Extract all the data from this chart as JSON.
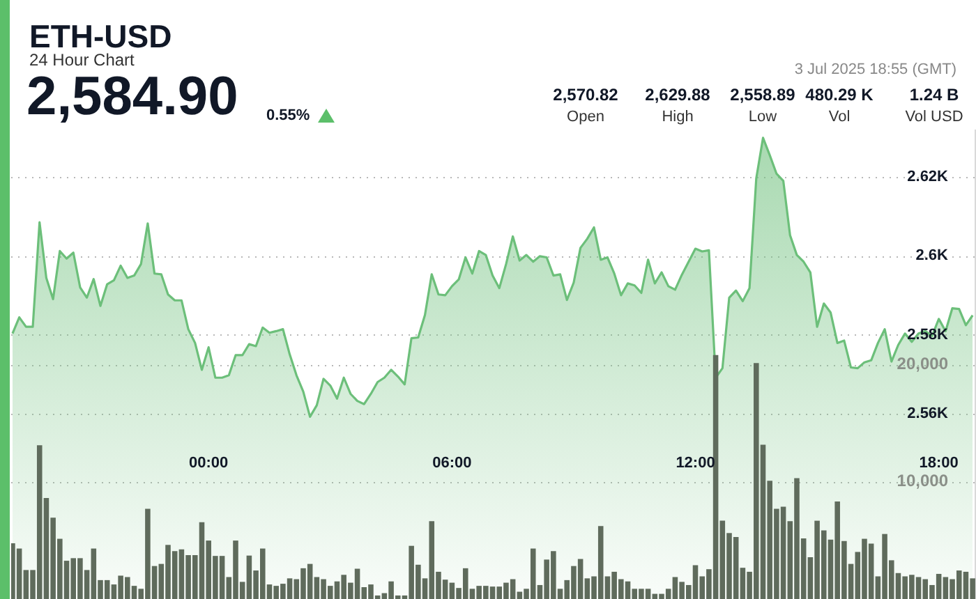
{
  "chart_data": {
    "type": "area",
    "title": "ETH-USD",
    "subtitle": "24 Hour Chart",
    "annotations": [
      "2,584.90",
      "0.55%",
      "3 Jul 2025 18:55 (GMT)",
      "2,570.82",
      "Open",
      "2,629.88",
      "High",
      "2,558.89",
      "Low",
      "480.29 K",
      "Vol",
      "1.24 B",
      "Vol USD"
    ],
    "x": [
      "2025-07-02T19:10",
      "2025-07-02T19:20",
      "2025-07-02T19:30",
      "2025-07-02T19:40",
      "2025-07-02T19:50",
      "2025-07-02T20:00",
      "2025-07-02T20:10",
      "2025-07-02T20:20",
      "2025-07-02T20:30",
      "2025-07-02T20:40",
      "2025-07-02T20:50",
      "2025-07-02T21:00",
      "2025-07-02T21:10",
      "2025-07-02T21:20",
      "2025-07-02T21:30",
      "2025-07-02T21:40",
      "2025-07-02T21:50",
      "2025-07-02T22:00",
      "2025-07-02T22:10",
      "2025-07-02T22:20",
      "2025-07-02T22:30",
      "2025-07-02T22:40",
      "2025-07-02T22:50",
      "2025-07-02T23:00",
      "2025-07-02T23:10",
      "2025-07-02T23:20",
      "2025-07-02T23:30",
      "2025-07-02T23:40",
      "2025-07-02T23:50",
      "2025-07-03T00:00",
      "2025-07-03T00:10",
      "2025-07-03T00:20",
      "2025-07-03T00:30",
      "2025-07-03T00:40",
      "2025-07-03T00:50",
      "2025-07-03T01:00",
      "2025-07-03T01:10",
      "2025-07-03T01:20",
      "2025-07-03T01:30",
      "2025-07-03T01:40",
      "2025-07-03T01:50",
      "2025-07-03T02:00",
      "2025-07-03T02:10",
      "2025-07-03T02:20",
      "2025-07-03T02:30",
      "2025-07-03T02:40",
      "2025-07-03T02:50",
      "2025-07-03T03:00",
      "2025-07-03T03:10",
      "2025-07-03T03:20",
      "2025-07-03T03:30",
      "2025-07-03T03:40",
      "2025-07-03T03:50",
      "2025-07-03T04:00",
      "2025-07-03T04:10",
      "2025-07-03T04:20",
      "2025-07-03T04:30",
      "2025-07-03T04:40",
      "2025-07-03T04:50",
      "2025-07-03T05:00",
      "2025-07-03T05:10",
      "2025-07-03T05:20",
      "2025-07-03T05:30",
      "2025-07-03T05:40",
      "2025-07-03T05:50",
      "2025-07-03T06:00",
      "2025-07-03T06:10",
      "2025-07-03T06:20",
      "2025-07-03T06:30",
      "2025-07-03T06:40",
      "2025-07-03T06:50",
      "2025-07-03T07:00",
      "2025-07-03T07:10",
      "2025-07-03T07:20",
      "2025-07-03T07:30",
      "2025-07-03T07:40",
      "2025-07-03T07:50",
      "2025-07-03T08:00",
      "2025-07-03T08:10",
      "2025-07-03T08:20",
      "2025-07-03T08:30",
      "2025-07-03T08:40",
      "2025-07-03T08:50",
      "2025-07-03T09:00",
      "2025-07-03T09:10",
      "2025-07-03T09:20",
      "2025-07-03T09:30",
      "2025-07-03T09:40",
      "2025-07-03T09:50",
      "2025-07-03T10:00",
      "2025-07-03T10:10",
      "2025-07-03T10:20",
      "2025-07-03T10:30",
      "2025-07-03T10:40",
      "2025-07-03T10:50",
      "2025-07-03T11:00",
      "2025-07-03T11:10",
      "2025-07-03T11:20",
      "2025-07-03T11:30",
      "2025-07-03T11:40",
      "2025-07-03T11:50",
      "2025-07-03T12:00",
      "2025-07-03T12:10",
      "2025-07-03T12:20",
      "2025-07-03T12:30",
      "2025-07-03T12:40",
      "2025-07-03T12:50",
      "2025-07-03T13:00",
      "2025-07-03T13:10",
      "2025-07-03T13:20",
      "2025-07-03T13:30",
      "2025-07-03T13:40",
      "2025-07-03T13:50",
      "2025-07-03T14:00",
      "2025-07-03T14:10",
      "2025-07-03T14:20",
      "2025-07-03T14:30",
      "2025-07-03T14:40",
      "2025-07-03T14:50",
      "2025-07-03T15:00",
      "2025-07-03T15:10",
      "2025-07-03T15:20",
      "2025-07-03T15:30",
      "2025-07-03T15:40",
      "2025-07-03T15:50",
      "2025-07-03T16:00",
      "2025-07-03T16:10",
      "2025-07-03T16:20",
      "2025-07-03T16:30",
      "2025-07-03T16:40",
      "2025-07-03T16:50",
      "2025-07-03T17:00",
      "2025-07-03T17:10",
      "2025-07-03T17:20",
      "2025-07-03T17:30",
      "2025-07-03T17:40",
      "2025-07-03T17:50",
      "2025-07-03T18:00",
      "2025-07-03T18:10",
      "2025-07-03T18:20",
      "2025-07-03T18:30",
      "2025-07-03T18:40",
      "2025-07-03T18:50"
    ],
    "series": [
      {
        "color": "#6cbf7a",
        "values": [
          2580.3,
          2584.4,
          2582,
          2582,
          2608.5,
          2594.4,
          2589,
          2601.2,
          2599.3,
          2600.8,
          2592,
          2589.4,
          2594.1,
          2587.3,
          2592.8,
          2593.8,
          2597.5,
          2594.4,
          2595,
          2597.9,
          2608.2,
          2595.5,
          2595.3,
          2590.2,
          2588.7,
          2588.7,
          2581.4,
          2577.9,
          2571.1,
          2576.8,
          2569.1,
          2569.1,
          2569.7,
          2574.8,
          2574.8,
          2577.6,
          2577.1,
          2581.8,
          2580.5,
          2580.9,
          2581.4,
          2575,
          2569.7,
          2565.6,
          2559.2,
          2562.1,
          2568.8,
          2567.1,
          2563.8,
          2569.1,
          2565,
          2563.2,
          2562.4,
          2565,
          2568,
          2569.1,
          2571.1,
          2569.4,
          2567.4,
          2579.1,
          2579.3,
          2585,
          2595.3,
          2590.2,
          2590,
          2592.3,
          2594,
          2599.6,
          2595.5,
          2601.2,
          2600.2,
          2595,
          2591.8,
          2597.9,
          2604.9,
          2598.8,
          2600.2,
          2598.5,
          2599.9,
          2599.6,
          2595,
          2595.3,
          2588.8,
          2593.2,
          2602,
          2604.3,
          2607.2,
          2599,
          2599.6,
          2595.5,
          2590,
          2593,
          2592.5,
          2590.6,
          2599,
          2593,
          2595.8,
          2592.3,
          2591.4,
          2595.2,
          2598.5,
          2601.8,
          2601.1,
          2601.4,
          2569.1,
          2571.5,
          2589.4,
          2591.2,
          2588.5,
          2591.8,
          2619.6,
          2629.9,
          2625.5,
          2620.8,
          2619,
          2605.2,
          2600.2,
          2598.5,
          2595.8,
          2582,
          2587.9,
          2585.6,
          2577.9,
          2578.5,
          2571.7,
          2571.5,
          2573,
          2573.5,
          2577.9,
          2581.4,
          2573.2,
          2577.4,
          2580.3,
          2578.2,
          2580.3,
          2580.9,
          2579.7,
          2584,
          2580.9,
          2586.7,
          2586.5,
          2582.4,
          2584.9
        ]
      },
      {
        "type": "bar",
        "axis": "y2",
        "color": "#5f6b5c",
        "values": [
          4750,
          4300,
          2470,
          2470,
          13100,
          8600,
          6930,
          5130,
          3260,
          3480,
          3480,
          2470,
          4300,
          1610,
          1610,
          1240,
          1990,
          1870,
          1120,
          870,
          7680,
          2810,
          2990,
          4610,
          4080,
          4230,
          3740,
          3740,
          6550,
          4980,
          3670,
          3670,
          1870,
          4980,
          1460,
          3700,
          2430,
          4300,
          1240,
          1120,
          1300,
          1760,
          1690,
          2620,
          2990,
          1870,
          1690,
          1120,
          1500,
          2060,
          1390,
          2580,
          1010,
          1240,
          300,
          500,
          1500,
          300,
          300,
          4530,
          2920,
          1760,
          6630,
          2320,
          1650,
          1390,
          940,
          2620,
          870,
          1120,
          1120,
          1060,
          1060,
          1390,
          1690,
          620,
          870,
          4300,
          1190,
          3360,
          4080,
          870,
          1610,
          2810,
          3410,
          1760,
          1930,
          6220,
          1930,
          2320,
          1690,
          1500,
          870,
          870,
          870,
          440,
          440,
          870,
          1870,
          1460,
          1190,
          2880,
          1930,
          2540,
          20790,
          6670,
          5620,
          5280,
          2660,
          2320,
          20110,
          13150,
          10080,
          7680,
          7870,
          6630,
          10300,
          5170,
          3560,
          6670,
          5840,
          5060,
          8310,
          4940,
          2990,
          4010,
          5130,
          4720,
          1930,
          5540,
          3300,
          2210,
          1930,
          2060,
          1870,
          1690,
          1190,
          2140,
          1870,
          1690,
          2430,
          2320,
          1760
        ]
      }
    ],
    "xlim": [
      "2025-07-02T19:08",
      "2025-07-03T18:55"
    ],
    "xticks": [
      {
        "value": "2025-07-03T00:00",
        "label": "00:00"
      },
      {
        "value": "2025-07-03T06:00",
        "label": "06:00"
      },
      {
        "value": "2025-07-03T12:00",
        "label": "12:00"
      },
      {
        "value": "2025-07-03T18:00",
        "label": "18:00"
      }
    ],
    "ylim": [
      2513,
      2632
    ],
    "yticks": [
      {
        "value": 2560,
        "label": "2.56K"
      },
      {
        "value": 2580,
        "label": "2.58K"
      },
      {
        "value": 2600,
        "label": "2.6K"
      },
      {
        "value": 2620,
        "label": "2.62K"
      }
    ],
    "y2lim": [
      0,
      40000
    ],
    "y2ticks": [
      {
        "value": 10000,
        "label": "10,000"
      },
      {
        "value": 20000,
        "label": "20,000"
      }
    ],
    "grid": "y"
  }
}
